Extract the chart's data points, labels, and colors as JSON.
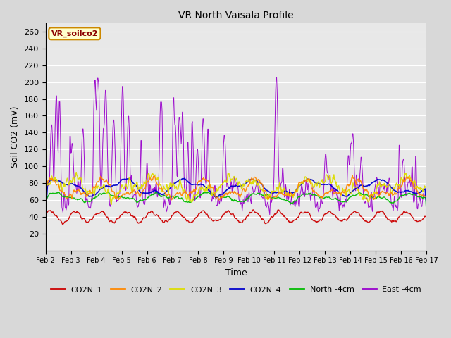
{
  "title": "VR North Vaisala Profile",
  "xlabel": "Time",
  "ylabel": "Soil CO2 (mV)",
  "ylim": [
    0,
    270
  ],
  "yticks": [
    20,
    40,
    60,
    80,
    100,
    120,
    140,
    160,
    180,
    200,
    220,
    240,
    260
  ],
  "annotation_text": "VR_soilco2",
  "series_colors": {
    "CO2N_1": "#cc0000",
    "CO2N_2": "#ff8800",
    "CO2N_3": "#dddd00",
    "CO2N_4": "#0000cc",
    "North_4cm": "#00bb00",
    "East_4cm": "#9900cc"
  },
  "fig_bg": "#d8d8d8",
  "plot_bg": "#e8e8e8",
  "grid_color": "#ffffff",
  "num_days": 15,
  "points_per_day": 48
}
